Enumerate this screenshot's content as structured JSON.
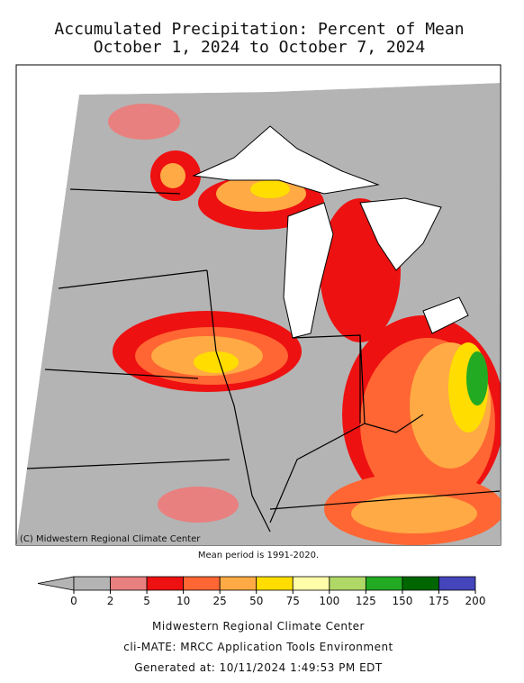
{
  "title": [
    "Accumulated Precipitation: Percent of Mean",
    "October 1, 2024 to October 7, 2024"
  ],
  "credit": "(C) Midwestern Regional Climate Center",
  "mean_period": "Mean period is 1991-2020.",
  "legend": {
    "ticks": [
      0,
      2,
      5,
      10,
      25,
      50,
      75,
      100,
      125,
      150,
      175,
      200
    ],
    "colors": [
      "#b4b4b4",
      "#e88080",
      "#ee1111",
      "#ff6633",
      "#ffaa44",
      "#ffdd00",
      "#ffffaa",
      "#b0d866",
      "#22aa22",
      "#006600",
      "#4444bb"
    ],
    "under_color": "#b4b4b4"
  },
  "footer": [
    "Midwestern Regional Climate Center",
    "cli-MATE: MRCC Application Tools Environment",
    "Generated at: 10/11/2024 1:49:53 PM EDT"
  ]
}
